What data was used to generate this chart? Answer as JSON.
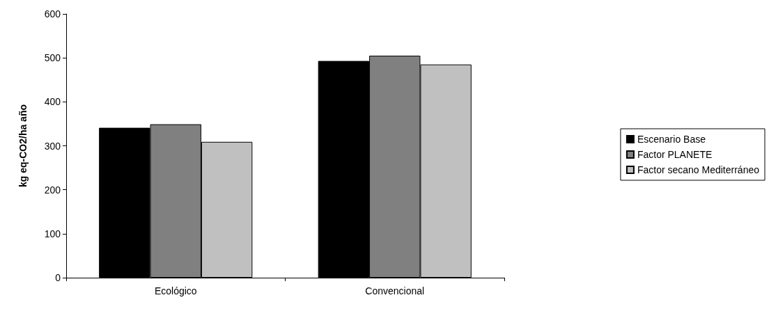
{
  "chart_data": {
    "type": "bar",
    "ylabel": "kg eq-CO2/ha año",
    "categories": [
      "Ecológico",
      "Convencional"
    ],
    "series": [
      {
        "name": "Escenario Base",
        "color": "#000000",
        "values": [
          341,
          493
        ]
      },
      {
        "name": "Factor PLANETE",
        "color": "#808080",
        "values": [
          349,
          505
        ]
      },
      {
        "name": "Factor secano Mediterráneo",
        "color": "#c0c0c0",
        "values": [
          309,
          485
        ]
      }
    ],
    "ylim": [
      0,
      600
    ],
    "yticks": [
      0,
      100,
      200,
      300,
      400,
      500,
      600
    ],
    "grid": false,
    "legend": "right"
  }
}
